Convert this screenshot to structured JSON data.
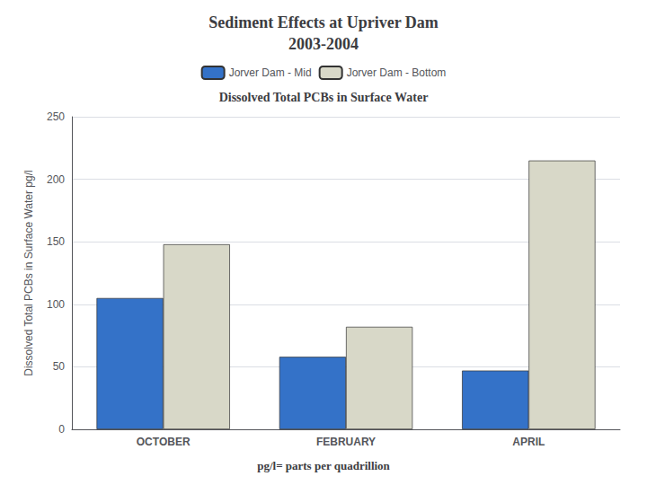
{
  "chart_data": {
    "type": "bar",
    "title": "Sediment Effects at Upriver Dam\n2003-2004",
    "subtitle": "Dissolved Total PCBs in Surface Water",
    "ylabel": "Dissolved Total PCBs in Surface Water pg/l",
    "annotations": [
      "pg/l= parts per quadrillion"
    ],
    "categories": [
      "OCTOBER",
      "FEBRUARY",
      "APRIL"
    ],
    "series": [
      {
        "name": "Jorver Dam - Mid",
        "color": "#3472c8",
        "values": [
          105,
          58,
          47
        ]
      },
      {
        "name": "Jorver Dam - Bottom",
        "color": "#d8d8c8",
        "values": [
          148,
          82,
          215
        ]
      }
    ],
    "ylim": [
      0,
      250
    ],
    "yticks": [
      0,
      50,
      100,
      150,
      200,
      250
    ],
    "grid": true,
    "legend": "top"
  }
}
